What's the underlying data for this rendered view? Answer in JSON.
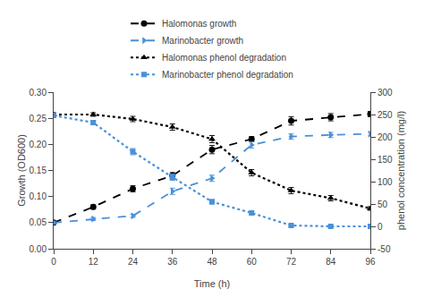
{
  "chart_data": {
    "type": "line",
    "xlabel": "Time (h)",
    "ylabel": "Growth (OD600)",
    "y2label": "phenol concentration (mg/l)",
    "x": [
      0,
      12,
      24,
      36,
      48,
      60,
      72,
      84,
      96
    ],
    "series": [
      {
        "name": "Halomonas growth",
        "color": "#000000",
        "line_style": "dash",
        "marker": "circle",
        "axis": "y",
        "values": [
          0.05,
          0.08,
          0.115,
          0.14,
          0.19,
          0.21,
          0.245,
          0.252,
          0.258
        ],
        "yerr": [
          0.003,
          0.004,
          0.006,
          0.006,
          0.008,
          0.005,
          0.008,
          0.007,
          0.005
        ]
      },
      {
        "name": "Marinobacter growth",
        "color": "#4a90d9",
        "line_style": "dash",
        "marker": "triangle-right",
        "axis": "y",
        "values": [
          0.05,
          0.057,
          0.063,
          0.11,
          0.135,
          0.199,
          0.215,
          0.218,
          0.22
        ],
        "yerr": [
          0.003,
          0.003,
          0.003,
          0.006,
          0.006,
          0.006,
          0.005,
          0.005,
          0.004
        ]
      },
      {
        "name": "Halomonas phenol degradation",
        "color": "#000000",
        "line_style": "dot",
        "marker": "triangle-up",
        "axis": "y2",
        "values": [
          250,
          250,
          240,
          222,
          195,
          120,
          80,
          63,
          40
        ],
        "yerr": [
          4,
          4,
          6,
          7,
          8,
          7,
          7,
          6,
          4
        ]
      },
      {
        "name": "Marinobacter phenol degradation",
        "color": "#4a90d9",
        "line_style": "dot",
        "marker": "square",
        "axis": "y2",
        "values": [
          248,
          232,
          167,
          110,
          55,
          30,
          2,
          0,
          0
        ],
        "yerr": [
          4,
          5,
          7,
          7,
          5,
          4,
          2,
          1,
          1
        ]
      }
    ],
    "xlim": [
      0,
      96
    ],
    "xticks": [
      0,
      12,
      24,
      36,
      48,
      60,
      72,
      84,
      96
    ],
    "ylim": [
      0,
      0.3
    ],
    "yticks": [
      {
        "value": 0,
        "label": "0.00"
      },
      0.05,
      {
        "value": 0.1,
        "label": "0.10"
      },
      0.15,
      {
        "value": 0.2,
        "label": "0.20"
      },
      0.25,
      {
        "value": 0.3,
        "label": "0.30"
      }
    ],
    "y2lim": [
      -50,
      300
    ],
    "y2ticks": [
      -50,
      0,
      50,
      100,
      150,
      200,
      250,
      300
    ],
    "grid": false,
    "legend": "top"
  }
}
